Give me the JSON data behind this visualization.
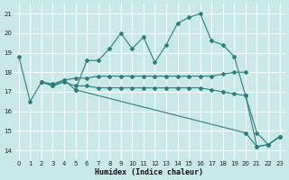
{
  "xlabel": "Humidex (Indice chaleur)",
  "xlim": [
    -0.5,
    23.5
  ],
  "ylim": [
    13.5,
    21.5
  ],
  "yticks": [
    14,
    15,
    16,
    17,
    18,
    19,
    20,
    21
  ],
  "xticks": [
    0,
    1,
    2,
    3,
    4,
    5,
    6,
    7,
    8,
    9,
    10,
    11,
    12,
    13,
    14,
    15,
    16,
    17,
    18,
    19,
    20,
    21,
    22,
    23
  ],
  "bg_color": "#c9e9e9",
  "grid_color": "#ffffff",
  "line_color": "#2e7d7d",
  "lines": [
    {
      "x": [
        0,
        1,
        2,
        3,
        4,
        5,
        6,
        7,
        8,
        9,
        10,
        11,
        12,
        13,
        14,
        15,
        16,
        17,
        18,
        19,
        20,
        21,
        22,
        23
      ],
      "y": [
        18.8,
        16.5,
        17.5,
        17.3,
        17.6,
        17.1,
        18.6,
        18.6,
        19.2,
        20.0,
        19.2,
        19.8,
        18.5,
        19.4,
        20.5,
        20.8,
        21.0,
        19.6,
        19.4,
        18.8,
        16.8,
        14.2,
        14.3,
        14.7
      ]
    },
    {
      "x": [
        2,
        3,
        4,
        5,
        6,
        7,
        8,
        9,
        10,
        11,
        12,
        13,
        14,
        15,
        16,
        17,
        18,
        19,
        20
      ],
      "y": [
        17.5,
        17.4,
        17.6,
        17.7,
        17.7,
        17.8,
        17.8,
        17.8,
        17.8,
        17.8,
        17.8,
        17.8,
        17.8,
        17.8,
        17.8,
        17.8,
        17.9,
        18.0,
        18.0
      ]
    },
    {
      "x": [
        2,
        3,
        4,
        5,
        6,
        7,
        8,
        9,
        10,
        11,
        12,
        13,
        14,
        15,
        16,
        17,
        18,
        19,
        20,
        21,
        22,
        23
      ],
      "y": [
        17.5,
        17.3,
        17.5,
        17.3,
        17.3,
        17.2,
        17.2,
        17.2,
        17.2,
        17.2,
        17.2,
        17.2,
        17.2,
        17.2,
        17.2,
        17.1,
        17.0,
        16.9,
        16.8,
        14.9,
        14.3,
        14.7
      ]
    },
    {
      "x": [
        5,
        20,
        21,
        22,
        23
      ],
      "y": [
        17.1,
        14.9,
        14.2,
        14.3,
        14.7
      ]
    }
  ]
}
